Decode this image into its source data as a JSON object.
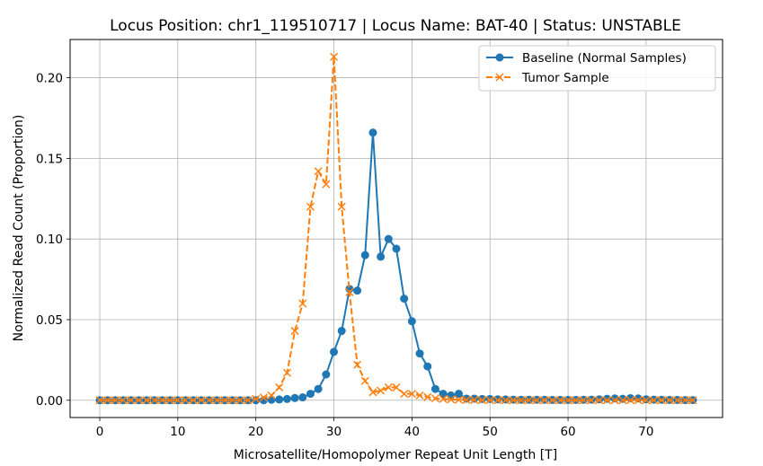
{
  "chart_data": {
    "type": "line",
    "title": "Locus Position: chr1_119510717 | Locus Name: BAT-40 | Status: UNSTABLE",
    "xlabel": "Microsatellite/Homopolymer Repeat Unit Length [T]",
    "ylabel": "Normalized Read Count (Proportion)",
    "xlim": [
      -3.8,
      79.8
    ],
    "ylim": [
      -0.0107,
      0.2237
    ],
    "xticks": [
      0,
      10,
      20,
      30,
      40,
      50,
      60,
      70
    ],
    "yticks": [
      0.0,
      0.05,
      0.1,
      0.15,
      0.2
    ],
    "xtick_labels": [
      "0",
      "10",
      "20",
      "30",
      "40",
      "50",
      "60",
      "70"
    ],
    "ytick_labels": [
      "0.00",
      "0.05",
      "0.10",
      "0.15",
      "0.20"
    ],
    "grid": true,
    "legend_position": "top-right",
    "x": [
      0,
      1,
      2,
      3,
      4,
      5,
      6,
      7,
      8,
      9,
      10,
      11,
      12,
      13,
      14,
      15,
      16,
      17,
      18,
      19,
      20,
      21,
      22,
      23,
      24,
      25,
      26,
      27,
      28,
      29,
      30,
      31,
      32,
      33,
      34,
      35,
      36,
      37,
      38,
      39,
      40,
      41,
      42,
      43,
      44,
      45,
      46,
      47,
      48,
      49,
      50,
      51,
      52,
      53,
      54,
      55,
      56,
      57,
      58,
      59,
      60,
      61,
      62,
      63,
      64,
      65,
      66,
      67,
      68,
      69,
      70,
      71,
      72,
      73,
      74,
      75,
      76
    ],
    "series": [
      {
        "name": "Baseline (Normal Samples)",
        "color": "#1f77b4",
        "marker": "circle",
        "line_style": "solid",
        "values": [
          0,
          0,
          0,
          0,
          0,
          0,
          0,
          0,
          0,
          0,
          0,
          0,
          0,
          0,
          0,
          0,
          0,
          0,
          0,
          0,
          0,
          0,
          0.0003,
          0.0005,
          0.0008,
          0.0014,
          0.0018,
          0.004,
          0.007,
          0.016,
          0.03,
          0.043,
          0.069,
          0.068,
          0.09,
          0.166,
          0.089,
          0.1,
          0.094,
          0.063,
          0.049,
          0.029,
          0.021,
          0.007,
          0.004,
          0.003,
          0.004,
          0.001,
          0.001,
          0.0008,
          0.0008,
          0.0006,
          0.0005,
          0.0004,
          0.0003,
          0.0003,
          0.0003,
          0.0003,
          0.0002,
          0.0002,
          0.0002,
          0.0002,
          0.0003,
          0.0004,
          0.0006,
          0.0009,
          0.0011,
          0.0009,
          0.0013,
          0.0011,
          0.0006,
          0.0004,
          0.0003,
          0.0002,
          0.0002,
          0.0001,
          0.0001
        ]
      },
      {
        "name": "Tumor Sample",
        "color": "#ff7f0e",
        "marker": "x",
        "line_style": "dashed",
        "values": [
          0,
          0,
          0,
          0,
          0,
          0,
          0,
          0,
          0,
          0,
          0,
          0,
          0,
          0,
          0,
          0,
          0,
          0,
          0,
          0,
          0.0008,
          0.0017,
          0.003,
          0.008,
          0.017,
          0.043,
          0.06,
          0.12,
          0.142,
          0.134,
          0.213,
          0.12,
          0.067,
          0.022,
          0.012,
          0.005,
          0.006,
          0.008,
          0.008,
          0.004,
          0.004,
          0.003,
          0.002,
          0.0012,
          0.0008,
          0.0005,
          0.0003,
          0.0002,
          0.0002,
          0.0001,
          0.0001,
          0,
          0,
          0,
          0,
          0,
          0,
          0,
          0,
          0,
          0,
          0,
          0,
          0,
          0,
          0,
          0,
          0,
          0,
          0,
          0,
          0,
          0,
          0,
          0,
          0,
          0
        ]
      }
    ]
  }
}
